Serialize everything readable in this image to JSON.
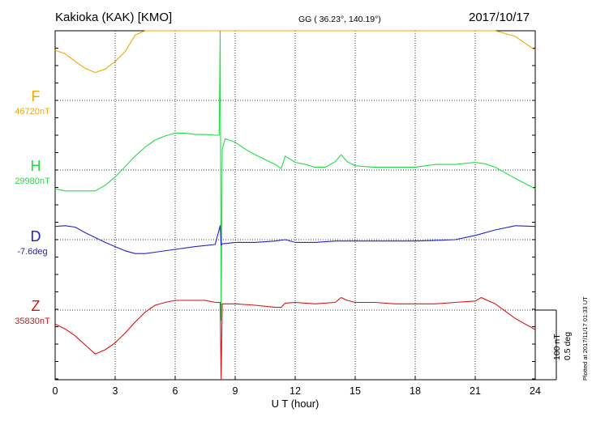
{
  "header": {
    "station": "Kakioka (KAK)  [KMO]",
    "coords": "GG ( 36.23°, 140.19°)",
    "date": "2017/10/17"
  },
  "footer": {
    "plotted": "Plotted at 2017/11/17 01:33 UT"
  },
  "chart_data": {
    "type": "line",
    "xlabel": "U T (hour)",
    "xlim": [
      0,
      24
    ],
    "xticks": [
      0,
      3,
      6,
      9,
      12,
      15,
      18,
      21,
      24
    ],
    "grid": true,
    "scale_bar": {
      "nt_label": "100 nT",
      "deg_label": "0.5 deg",
      "nt_value": 100,
      "deg_value": 0.5
    },
    "series": [
      {
        "id": "F",
        "name": "F",
        "baseline_label": "46720nT",
        "color": "#f0a800",
        "unit": "nT",
        "baseline": 46720,
        "x": [
          0,
          0.5,
          1,
          1.5,
          2,
          2.5,
          3,
          3.5,
          4,
          4.5,
          5,
          5.5,
          6,
          6.5,
          7,
          7.5,
          8,
          8.5,
          9,
          9.5,
          10,
          10.5,
          11,
          11.3,
          11.5,
          12,
          12.5,
          13,
          13.5,
          14,
          14.3,
          14.6,
          15,
          16,
          17,
          18,
          19,
          20,
          21,
          21.5,
          22,
          23,
          24
        ],
        "y": [
          72,
          67,
          56,
          46,
          40,
          45,
          56,
          70,
          94,
          117,
          132,
          141,
          144,
          144,
          142,
          141,
          135,
          129,
          119,
          114,
          114,
          109,
          106,
          102,
          114,
          124,
          121,
          121,
          122,
          129,
          142,
          129,
          122,
          122,
          122,
          121,
          124,
          126,
          131,
          129,
          119,
          92,
          72
        ]
      },
      {
        "id": "H",
        "name": "H",
        "baseline_label": "29980nT",
        "color": "#22dd44",
        "unit": "nT",
        "baseline": 29980,
        "x": [
          0,
          0.5,
          1,
          1.5,
          2,
          2.5,
          3,
          3.5,
          4,
          4.5,
          5,
          5.5,
          6,
          6.5,
          7,
          7.5,
          8,
          8.2,
          8.25,
          8.3,
          8.35,
          8.5,
          9,
          9.5,
          10,
          10.5,
          11,
          11.3,
          11.5,
          12,
          12.5,
          13,
          13.5,
          14,
          14.3,
          14.6,
          15,
          16,
          17,
          18,
          19,
          20,
          21,
          21.5,
          22,
          23,
          24
        ],
        "y": [
          -27,
          -30,
          -30,
          -30,
          -30,
          -22,
          -10,
          5,
          20,
          33,
          43,
          49,
          53,
          53,
          51,
          51,
          50,
          50,
          222,
          -216,
          30,
          45,
          40,
          30,
          22,
          15,
          8,
          2,
          20,
          11,
          8,
          4,
          4,
          12,
          22,
          12,
          6,
          4,
          4,
          4,
          8,
          8,
          11,
          9,
          4,
          -12,
          -27
        ]
      },
      {
        "id": "D",
        "name": "D",
        "baseline_label": "-7.6deg",
        "color": "#2222cc",
        "unit": "deg",
        "baseline": -7.6,
        "x": [
          0,
          0.5,
          1,
          1.5,
          2,
          2.5,
          3,
          3.5,
          4,
          4.5,
          5,
          6,
          7,
          8,
          8.25,
          8.3,
          8.35,
          9,
          10,
          11,
          11.5,
          12,
          13,
          14,
          15,
          16,
          17,
          18,
          19,
          20,
          21,
          22,
          23,
          24
        ],
        "y": [
          0.095,
          0.1,
          0.09,
          0.05,
          0.015,
          -0.02,
          -0.05,
          -0.08,
          -0.1,
          -0.1,
          -0.09,
          -0.07,
          -0.05,
          -0.035,
          0.1,
          -0.04,
          -0.03,
          -0.02,
          -0.02,
          -0.01,
          0.0,
          -0.02,
          -0.02,
          -0.01,
          -0.01,
          -0.01,
          -0.01,
          -0.01,
          -0.005,
          0.0,
          0.03,
          0.07,
          0.1,
          0.095
        ]
      },
      {
        "id": "Z",
        "name": "Z",
        "baseline_label": "35830nT",
        "color": "#dd1111",
        "unit": "nT",
        "baseline": 35830,
        "x": [
          0,
          0.5,
          1,
          1.5,
          2,
          2.5,
          3,
          3.5,
          4,
          4.5,
          5,
          5.5,
          6,
          6.5,
          7,
          7.5,
          8,
          8.25,
          8.3,
          8.35,
          8.5,
          9,
          10,
          11,
          11.3,
          11.5,
          12,
          13,
          14,
          14.3,
          14.6,
          15,
          16,
          17,
          18,
          19,
          20,
          21,
          21.3,
          21.6,
          22,
          23,
          24
        ],
        "y": [
          -20,
          -27,
          -37,
          -50,
          -63,
          -57,
          -47,
          -33,
          -17,
          -3,
          7,
          11,
          14,
          14,
          14,
          14,
          11,
          11,
          -300,
          9,
          9,
          9,
          7,
          4,
          4,
          10,
          11,
          9,
          11,
          18,
          14,
          11,
          11,
          9,
          9,
          9,
          11,
          13,
          18,
          14,
          9,
          -12,
          -28
        ]
      }
    ]
  }
}
